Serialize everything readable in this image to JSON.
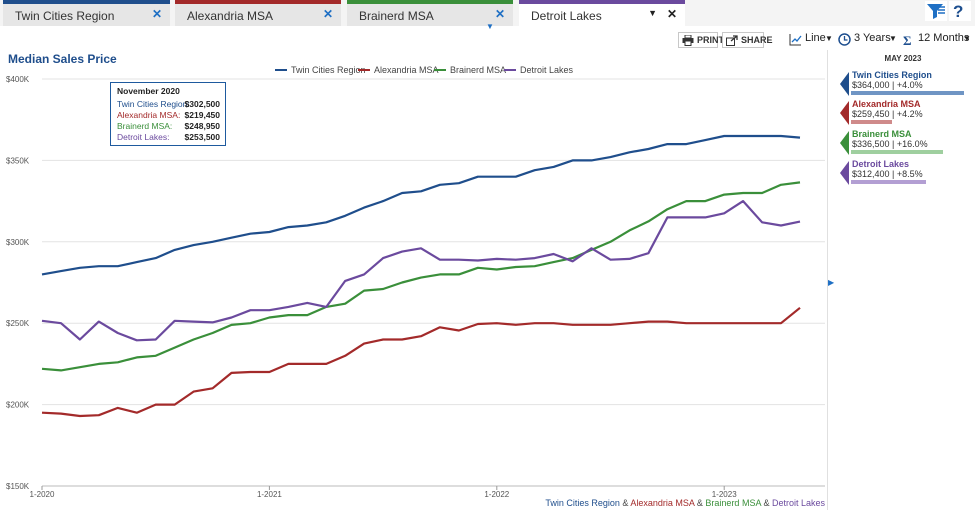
{
  "tabs": [
    {
      "label": "Twin Cities Region",
      "color": "#1f4e8c",
      "active": false
    },
    {
      "label": "Alexandria MSA",
      "color": "#a32a2a",
      "active": false
    },
    {
      "label": "Brainerd MSA",
      "color": "#3a8f3a",
      "active": false
    },
    {
      "label": "Detroit Lakes",
      "color": "#6b4a9e",
      "active": true
    }
  ],
  "toolbar": {
    "print_label": "PRINT",
    "share_label": "SHARE",
    "chart_type": "Line",
    "range": "3 Years",
    "period": "12 Months"
  },
  "chart_title": "Median Sales Price",
  "tooltip": {
    "title": "November 2020",
    "rows": [
      {
        "label": "Twin Cities Region:",
        "value": "$302,500",
        "color": "#1f4e8c"
      },
      {
        "label": "Alexandria MSA:",
        "value": "$219,450",
        "color": "#a32a2a"
      },
      {
        "label": "Brainerd MSA:",
        "value": "$248,950",
        "color": "#3a8f3a"
      },
      {
        "label": "Detroit Lakes:",
        "value": "$253,500",
        "color": "#6b4a9e"
      }
    ]
  },
  "panel": {
    "title": "MAY 2023",
    "cards": [
      {
        "name": "Twin Cities Region",
        "value": "$364,000 | +4.0%",
        "color": "#1f4e8c",
        "bar_color": "#6f95c4",
        "bar_fraction": 1.0
      },
      {
        "name": "Alexandria MSA",
        "value": "$259,450 | +4.2%",
        "color": "#a32a2a",
        "bar_color": "#cf8a8a",
        "bar_fraction": 0.36
      },
      {
        "name": "Brainerd MSA",
        "value": "$336,500 | +16.0%",
        "color": "#3a8f3a",
        "bar_color": "#9fcf9f",
        "bar_fraction": 0.81
      },
      {
        "name": "Detroit Lakes",
        "value": "$312,400 | +8.5%",
        "color": "#6b4a9e",
        "bar_color": "#b39fd3",
        "bar_fraction": 0.66
      }
    ]
  },
  "footer": {
    "names": [
      "Twin Cities Region",
      "Alexandria MSA",
      "Brainerd MSA",
      "Detroit Lakes"
    ],
    "separator": " & "
  },
  "chart_data": {
    "type": "line",
    "title": "Median Sales Price",
    "ylim": [
      150000,
      400000
    ],
    "yticks": [
      {
        "value": 150000,
        "label": "$150K"
      },
      {
        "value": 200000,
        "label": "$200K"
      },
      {
        "value": 250000,
        "label": "$250K"
      },
      {
        "value": 300000,
        "label": "$300K"
      },
      {
        "value": 350000,
        "label": "$350K"
      },
      {
        "value": 400000,
        "label": "$400K"
      }
    ],
    "x": [
      "1-2020",
      "2-2020",
      "3-2020",
      "4-2020",
      "5-2020",
      "6-2020",
      "7-2020",
      "8-2020",
      "9-2020",
      "10-2020",
      "11-2020",
      "12-2020",
      "1-2021",
      "2-2021",
      "3-2021",
      "4-2021",
      "5-2021",
      "6-2021",
      "7-2021",
      "8-2021",
      "9-2021",
      "10-2021",
      "11-2021",
      "12-2021",
      "1-2022",
      "2-2022",
      "3-2022",
      "4-2022",
      "5-2022",
      "6-2022",
      "7-2022",
      "8-2022",
      "9-2022",
      "10-2022",
      "11-2022",
      "12-2022",
      "1-2023",
      "2-2023",
      "3-2023",
      "4-2023",
      "5-2023"
    ],
    "xticks": [
      "1-2020",
      "1-2021",
      "1-2022",
      "1-2023"
    ],
    "grid": true,
    "legend": "top-center",
    "series": [
      {
        "name": "Twin Cities Region",
        "color": "#1f4e8c",
        "values": [
          280000,
          282000,
          284000,
          285000,
          285000,
          287500,
          290000,
          295000,
          298000,
          300000,
          302500,
          305000,
          306000,
          309000,
          310000,
          312000,
          316000,
          321000,
          325000,
          330000,
          331000,
          335000,
          336000,
          340000,
          340000,
          340000,
          344000,
          346000,
          350000,
          350000,
          352000,
          355000,
          357000,
          360000,
          360000,
          362500,
          365000,
          365000,
          365000,
          365000,
          364000
        ]
      },
      {
        "name": "Alexandria MSA",
        "color": "#a32a2a",
        "values": [
          195000,
          194500,
          193000,
          193500,
          198000,
          195000,
          200000,
          200000,
          208000,
          210000,
          219450,
          220000,
          220000,
          225000,
          225000,
          225000,
          230000,
          237500,
          240000,
          240000,
          242000,
          247500,
          245500,
          249500,
          250000,
          249000,
          250000,
          250000,
          249000,
          249000,
          249000,
          250000,
          251000,
          251000,
          250000,
          250000,
          250000,
          250000,
          250000,
          250000,
          259450
        ]
      },
      {
        "name": "Brainerd MSA",
        "color": "#3a8f3a",
        "values": [
          222000,
          221000,
          223000,
          225000,
          226000,
          229000,
          230000,
          235000,
          240000,
          244000,
          248950,
          250000,
          253500,
          255000,
          255000,
          260000,
          262000,
          270000,
          271000,
          275000,
          278000,
          280000,
          280000,
          284000,
          283000,
          284500,
          285000,
          287500,
          290000,
          295000,
          300000,
          307000,
          312500,
          320000,
          325000,
          325000,
          329000,
          330000,
          330000,
          335000,
          336500
        ]
      },
      {
        "name": "Detroit Lakes",
        "color": "#6b4a9e",
        "values": [
          251500,
          250000,
          240000,
          251000,
          244000,
          239500,
          240000,
          251500,
          251000,
          250500,
          253500,
          258000,
          258000,
          260000,
          262500,
          260000,
          276000,
          280000,
          290000,
          294000,
          296000,
          289000,
          289000,
          288500,
          289500,
          289000,
          290000,
          292500,
          288000,
          296000,
          289000,
          289500,
          293000,
          315000,
          315000,
          315000,
          317500,
          325000,
          312000,
          310000,
          312400
        ]
      }
    ]
  }
}
